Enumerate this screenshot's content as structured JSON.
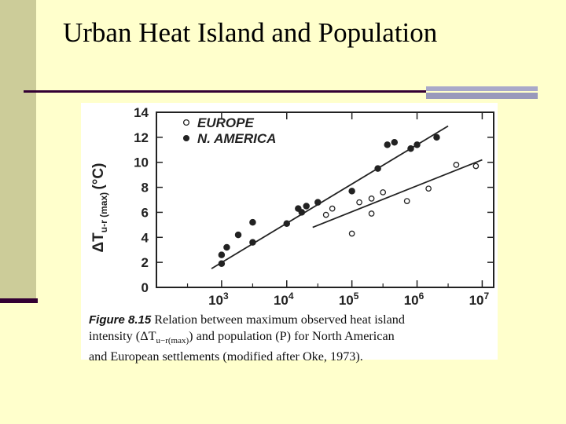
{
  "slide": {
    "title": "Urban Heat Island and Population"
  },
  "figure": {
    "number": "Figure 8.15",
    "caption_line1": "Relation between maximum observed heat island",
    "caption_line2": "intensity (ΔT",
    "caption_sub": "u−r(max)",
    "caption_line2b": ") and population (P) for North American",
    "caption_line3": "and European settlements (modified after Oke, 1973)."
  },
  "chart_data": {
    "type": "scatter",
    "title": "",
    "xlabel": "",
    "ylabel_main": "ΔT",
    "ylabel_sub": "u-r (max)",
    "ylabel_unit": "(°C)",
    "xscale": "log",
    "xlim": [
      100,
      15000000
    ],
    "ylim": [
      0,
      14
    ],
    "yticks": [
      0,
      2,
      4,
      6,
      8,
      10,
      12,
      14
    ],
    "xticks": [
      1000,
      10000,
      100000,
      1000000,
      10000000
    ],
    "xtick_labels": [
      {
        "base": "10",
        "exp": "3"
      },
      {
        "base": "10",
        "exp": "4"
      },
      {
        "base": "10",
        "exp": "5"
      },
      {
        "base": "10",
        "exp": "6"
      },
      {
        "base": "10",
        "exp": "7"
      }
    ],
    "legend_position": "top-left",
    "series": [
      {
        "name": "EUROPE",
        "marker": "open-circle",
        "points": [
          [
            40000,
            5.8
          ],
          [
            50000,
            6.3
          ],
          [
            100000,
            4.3
          ],
          [
            130000,
            6.8
          ],
          [
            200000,
            5.9
          ],
          [
            200000,
            7.1
          ],
          [
            300000,
            7.6
          ],
          [
            700000,
            6.9
          ],
          [
            1500000,
            7.9
          ],
          [
            4000000,
            9.8
          ],
          [
            8000000,
            9.7
          ]
        ],
        "trend": [
          [
            25000,
            4.8
          ],
          [
            10000000,
            10.2
          ]
        ]
      },
      {
        "name": "N. AMERICA",
        "marker": "filled-circle",
        "points": [
          [
            1000,
            1.9
          ],
          [
            1000,
            2.6
          ],
          [
            1200,
            3.2
          ],
          [
            1800,
            4.2
          ],
          [
            3000,
            3.6
          ],
          [
            3000,
            5.2
          ],
          [
            10000,
            5.1
          ],
          [
            15000,
            6.3
          ],
          [
            17000,
            6.0
          ],
          [
            20000,
            6.5
          ],
          [
            30000,
            6.8
          ],
          [
            100000,
            7.7
          ],
          [
            250000,
            9.5
          ],
          [
            350000,
            11.4
          ],
          [
            450000,
            11.6
          ],
          [
            800000,
            11.1
          ],
          [
            1000000,
            11.4
          ],
          [
            2000000,
            12.0
          ]
        ],
        "trend": [
          [
            700,
            1.5
          ],
          [
            3000000,
            12.9
          ]
        ]
      }
    ]
  }
}
